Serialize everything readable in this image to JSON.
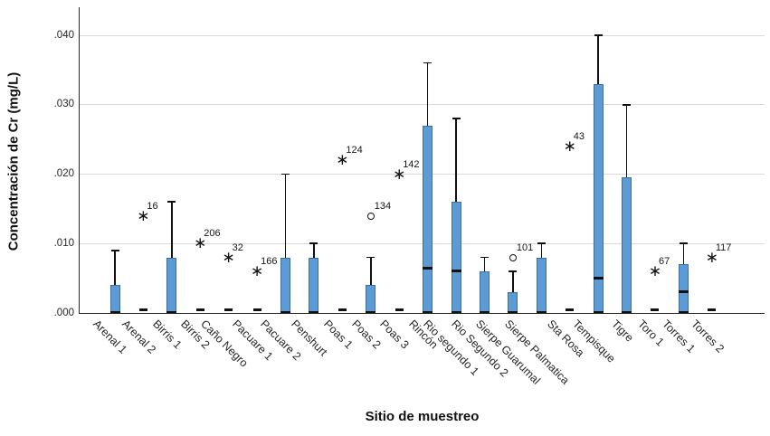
{
  "colors": {
    "box_fill": "#5c9bd3",
    "box_border": "#3c6da5",
    "axis": "#262626",
    "grid": "#d9d9d9",
    "marker": "#111111"
  },
  "chart_data": {
    "type": "boxplot",
    "title": "",
    "xlabel": "Sitio de muestreo",
    "ylabel": "Concentración de Cr (mg/L)",
    "ylim": [
      0,
      0.044
    ],
    "grid": "horizontal",
    "legend": "none",
    "y_ticks": [
      {
        "value": 0.0,
        "label": ".000"
      },
      {
        "value": 0.01,
        "label": ".010"
      },
      {
        "value": 0.02,
        "label": ".020"
      },
      {
        "value": 0.03,
        "label": ".030"
      },
      {
        "value": 0.04,
        "label": ".040"
      }
    ],
    "boxes": [
      {
        "site": "Arenal 1",
        "q1": 0,
        "median": 0,
        "q3": 0.004,
        "whisker_low": 0,
        "whisker_high": 0.009,
        "outliers": []
      },
      {
        "site": "Arenal 2",
        "q1": 0,
        "median": 0,
        "q3": 0,
        "whisker_low": 0,
        "whisker_high": 0,
        "outliers": [
          {
            "value": 0.014,
            "label": "16",
            "marker": "star"
          }
        ]
      },
      {
        "site": "Birris 1",
        "q1": 0,
        "median": 0,
        "q3": 0.008,
        "whisker_low": 0,
        "whisker_high": 0.016,
        "outliers": []
      },
      {
        "site": "Birris 2",
        "q1": 0,
        "median": 0,
        "q3": 0,
        "whisker_low": 0,
        "whisker_high": 0,
        "outliers": [
          {
            "value": 0.01,
            "label": "206",
            "marker": "star"
          }
        ]
      },
      {
        "site": "Caño Negro",
        "q1": 0,
        "median": 0,
        "q3": 0,
        "whisker_low": 0,
        "whisker_high": 0,
        "outliers": [
          {
            "value": 0.008,
            "label": "32",
            "marker": "star"
          }
        ]
      },
      {
        "site": "Pacuare 1",
        "q1": 0,
        "median": 0,
        "q3": 0,
        "whisker_low": 0,
        "whisker_high": 0,
        "outliers": [
          {
            "value": 0.006,
            "label": "166",
            "marker": "star"
          }
        ]
      },
      {
        "site": "Pacuare 2",
        "q1": 0,
        "median": 0,
        "q3": 0.008,
        "whisker_low": 0,
        "whisker_high": 0.02,
        "outliers": []
      },
      {
        "site": "Penshurt",
        "q1": 0,
        "median": 0,
        "q3": 0.008,
        "whisker_low": 0,
        "whisker_high": 0.01,
        "outliers": []
      },
      {
        "site": "Poas 1",
        "q1": 0,
        "median": 0,
        "q3": 0,
        "whisker_low": 0,
        "whisker_high": 0,
        "outliers": [
          {
            "value": 0.022,
            "label": "124",
            "marker": "star"
          }
        ]
      },
      {
        "site": "Poas 2",
        "q1": 0,
        "median": 0,
        "q3": 0.004,
        "whisker_low": 0,
        "whisker_high": 0.008,
        "outliers": [
          {
            "value": 0.014,
            "label": "134",
            "marker": "circle"
          }
        ]
      },
      {
        "site": "Poas 3",
        "q1": 0,
        "median": 0,
        "q3": 0,
        "whisker_low": 0,
        "whisker_high": 0,
        "outliers": [
          {
            "value": 0.02,
            "label": "142",
            "marker": "star"
          }
        ]
      },
      {
        "site": "Rincón",
        "q1": 0,
        "median": 0.0065,
        "q3": 0.027,
        "whisker_low": 0,
        "whisker_high": 0.036,
        "outliers": []
      },
      {
        "site": "Rio segundo 1",
        "q1": 0,
        "median": 0.006,
        "q3": 0.016,
        "whisker_low": 0,
        "whisker_high": 0.028,
        "outliers": []
      },
      {
        "site": "Rio Segundo 2",
        "q1": 0,
        "median": 0,
        "q3": 0.006,
        "whisker_low": 0,
        "whisker_high": 0.008,
        "outliers": []
      },
      {
        "site": "Sierpe Guarumal",
        "q1": 0,
        "median": 0,
        "q3": 0.003,
        "whisker_low": 0,
        "whisker_high": 0.006,
        "outliers": [
          {
            "value": 0.008,
            "label": "101",
            "marker": "circle"
          }
        ]
      },
      {
        "site": "Sierpe Palmatica",
        "q1": 0,
        "median": 0,
        "q3": 0.008,
        "whisker_low": 0,
        "whisker_high": 0.01,
        "outliers": []
      },
      {
        "site": "Sta Rosa",
        "q1": 0,
        "median": 0,
        "q3": 0,
        "whisker_low": 0,
        "whisker_high": 0,
        "outliers": [
          {
            "value": 0.024,
            "label": "43",
            "marker": "star"
          }
        ]
      },
      {
        "site": "Tempisque",
        "q1": 0,
        "median": 0.005,
        "q3": 0.033,
        "whisker_low": 0,
        "whisker_high": 0.04,
        "outliers": []
      },
      {
        "site": "Tigre",
        "q1": 0,
        "median": 0,
        "q3": 0.0195,
        "whisker_low": 0,
        "whisker_high": 0.03,
        "outliers": []
      },
      {
        "site": "Toro 1",
        "q1": 0,
        "median": 0,
        "q3": 0,
        "whisker_low": 0,
        "whisker_high": 0,
        "outliers": [
          {
            "value": 0.006,
            "label": "67",
            "marker": "star"
          }
        ]
      },
      {
        "site": "Torres 1",
        "q1": 0,
        "median": 0.003,
        "q3": 0.007,
        "whisker_low": 0,
        "whisker_high": 0.01,
        "outliers": []
      },
      {
        "site": "Torres 2",
        "q1": 0,
        "median": 0,
        "q3": 0,
        "whisker_low": 0,
        "whisker_high": 0,
        "outliers": [
          {
            "value": 0.008,
            "label": "117",
            "marker": "star"
          }
        ]
      }
    ]
  }
}
